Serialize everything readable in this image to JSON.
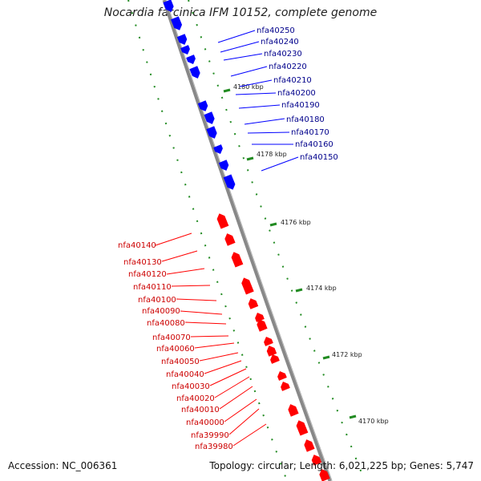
{
  "header": {
    "title": "Nocardia farcinica IFM 10152, complete genome"
  },
  "footer": {
    "accession": "Accession: NC_006361",
    "summary": "Topology: circular; Length: 6,021,225 bp; Genes: 5,747"
  },
  "colors": {
    "forward_strand": "#0000ff",
    "reverse_strand": "#ff0000",
    "backbone": "#888888",
    "tick": "#228b22",
    "label_forward": "#00008b",
    "label_reverse": "#cc0000"
  },
  "scale": {
    "ticks": [
      "4170 kbp",
      "4172 kbp",
      "4174 kbp",
      "4176 kbp",
      "4178 kbp",
      "4180 kbp"
    ]
  },
  "genes_forward": [
    "nfa40250",
    "nfa40240",
    "nfa40230",
    "nfa40220",
    "nfa40210",
    "nfa40200",
    "nfa40190",
    "nfa40180",
    "nfa40170",
    "nfa40160",
    "nfa40150"
  ],
  "genes_reverse": [
    "nfa40140",
    "nfa40130",
    "nfa40120",
    "nfa40110",
    "nfa40100",
    "nfa40090",
    "nfa40080",
    "nfa40070",
    "nfa40060",
    "nfa40050",
    "nfa40040",
    "nfa40030",
    "nfa40020",
    "nfa40010",
    "nfa40000",
    "nfa39990",
    "nfa39980"
  ]
}
